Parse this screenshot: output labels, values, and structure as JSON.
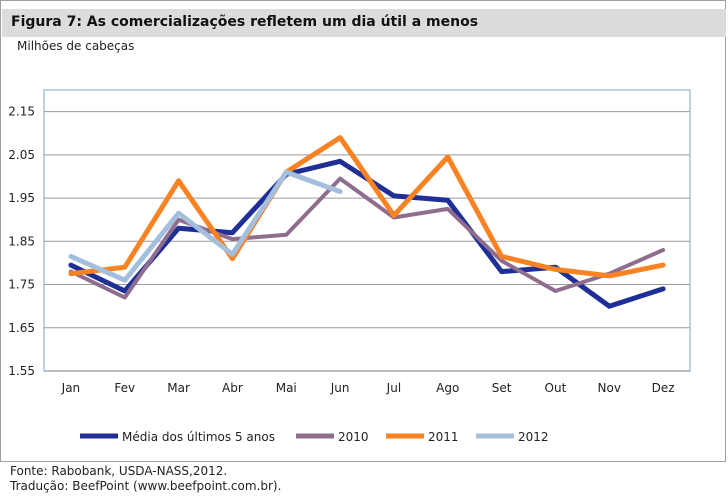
{
  "header": {
    "title": "Figura 7: As comercializações refletem um dia útil a menos",
    "unit_label": "Milhões de cabeças"
  },
  "chart_data": {
    "type": "line",
    "categories": [
      "Jan",
      "Fev",
      "Mar",
      "Abr",
      "Mai",
      "Jun",
      "Jul",
      "Ago",
      "Set",
      "Out",
      "Nov",
      "Dez"
    ],
    "ylim": [
      1.55,
      2.2
    ],
    "yticks": [
      1.55,
      1.65,
      1.75,
      1.85,
      1.95,
      2.05,
      2.15
    ],
    "ytick_labels": [
      "1.55",
      "1.65",
      "1.75",
      "1.85",
      "1.95",
      "2.05",
      "2.15"
    ],
    "grid": true,
    "legend_position": "bottom",
    "series": [
      {
        "name": "Média dos últimos 5 anos",
        "color": "#1f2f96",
        "values": [
          1.795,
          1.735,
          1.88,
          1.87,
          2.005,
          2.035,
          1.955,
          1.945,
          1.78,
          1.79,
          1.7,
          1.74
        ]
      },
      {
        "name": "2010",
        "color": "#8f6d8f",
        "values": [
          1.78,
          1.72,
          1.9,
          1.855,
          1.865,
          1.995,
          1.905,
          1.925,
          1.805,
          1.735,
          1.775,
          1.83
        ]
      },
      {
        "name": "2011",
        "color": "#f98223",
        "values": [
          1.775,
          1.79,
          1.99,
          1.81,
          2.01,
          2.09,
          1.91,
          2.045,
          1.815,
          1.785,
          1.77,
          1.795
        ]
      },
      {
        "name": "2012",
        "color": "#a3bfdc",
        "values": [
          1.815,
          1.76,
          1.915,
          1.82,
          2.01,
          1.965,
          null,
          null,
          null,
          null,
          null,
          null
        ]
      }
    ]
  },
  "footer": {
    "source": "Fonte: Rabobank, USDA-NASS,2012.",
    "translation": "Tradução: BeefPoint (www.beefpoint.com.br)."
  }
}
